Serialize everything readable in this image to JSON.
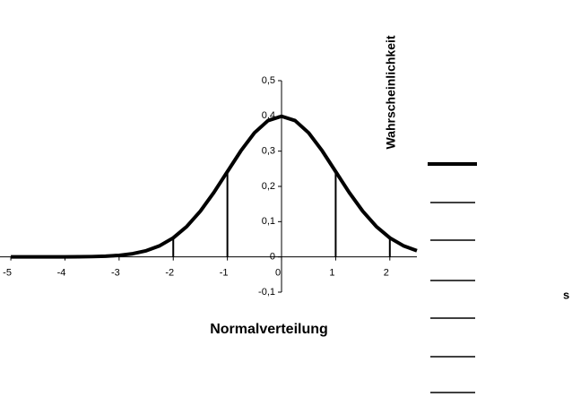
{
  "chart_data": {
    "type": "line",
    "title": "Normalverteilung",
    "y_label": "Wahrscheinlichkeit",
    "annotation": "s",
    "x": [
      -5,
      -4.75,
      -4.5,
      -4.25,
      -4,
      -3.75,
      -3.5,
      -3.25,
      -3,
      -2.75,
      -2.5,
      -2.25,
      -2,
      -1.75,
      -1.5,
      -1.25,
      -1,
      -0.75,
      -0.5,
      -0.25,
      0,
      0.25,
      0.5,
      0.75,
      1,
      1.25,
      1.5,
      1.75,
      2,
      2.25,
      2.5
    ],
    "series": [
      {
        "color": "#000000",
        "values": [
          0,
          0,
          0,
          0,
          0.0001,
          0.0004,
          0.0009,
          0.002,
          0.0044,
          0.0091,
          0.0175,
          0.0317,
          0.054,
          0.0863,
          0.1295,
          0.1827,
          0.242,
          0.3011,
          0.3521,
          0.3867,
          0.3989,
          0.3867,
          0.3521,
          0.3011,
          0.242,
          0.1827,
          0.1295,
          0.0863,
          0.054,
          0.0317,
          0.0175
        ]
      }
    ],
    "drop_lines": {
      "x": [
        -2,
        -1,
        1,
        2
      ],
      "values": [
        0.054,
        0.242,
        0.242,
        0.054
      ]
    },
    "xlim": [
      -5.2,
      2.5
    ],
    "xticks": [
      -5,
      -4,
      -3,
      -2,
      -1,
      0,
      1,
      2
    ],
    "ylim": [
      -0.1,
      0.5
    ],
    "yticks": [
      {
        "value": -0.1,
        "label": "-0,1"
      },
      0,
      {
        "value": 0.1,
        "label": "0,1"
      },
      {
        "value": 0.2,
        "label": "0,2"
      },
      {
        "value": 0.3,
        "label": "0,3"
      },
      {
        "value": 0.4,
        "label": "0,4"
      },
      {
        "value": 0.5,
        "label": "0,5"
      }
    ]
  }
}
